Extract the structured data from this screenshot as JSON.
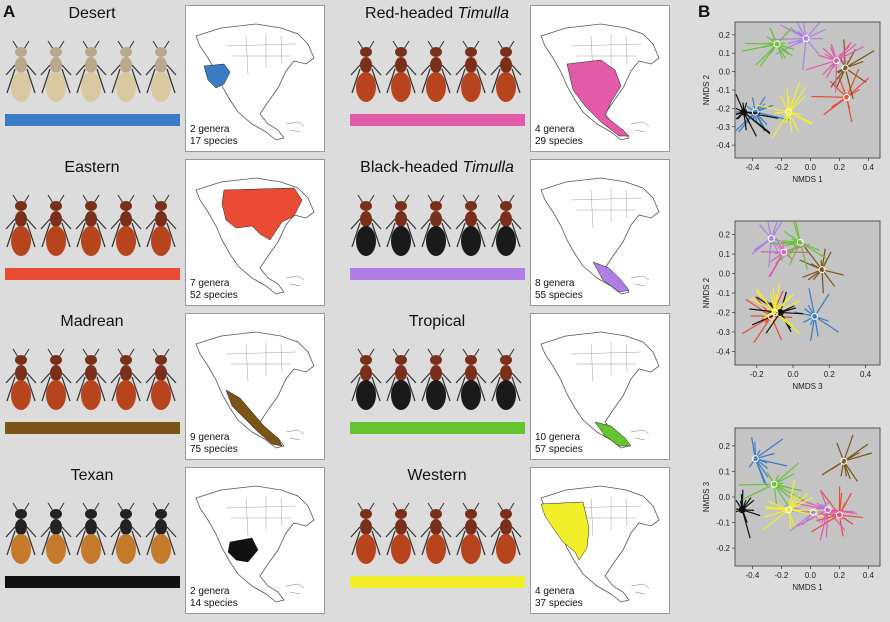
{
  "panels": {
    "a": "A",
    "b": "B"
  },
  "groups": [
    {
      "title": "Desert",
      "title_italic": "",
      "color": "#3b7cc4",
      "genera": "2 genera",
      "species": "17 species"
    },
    {
      "title": "Eastern",
      "title_italic": "",
      "color": "#ea4b35",
      "genera": "7 genera",
      "species": "52 species"
    },
    {
      "title": "Madrean",
      "title_italic": "",
      "color": "#7a5516",
      "genera": "9 genera",
      "species": "75 species"
    },
    {
      "title": "Texan",
      "title_italic": "",
      "color": "#111111",
      "genera": "2 genera",
      "species": "14 species"
    },
    {
      "title": "Red-headed ",
      "title_italic": "Timulla",
      "color": "#e35aa8",
      "genera": "4 genera",
      "species": "29 species"
    },
    {
      "title": "Black-headed ",
      "title_italic": "Timulla",
      "color": "#b07ee6",
      "genera": "8 genera",
      "species": "55 species"
    },
    {
      "title": "Tropical",
      "title_italic": "",
      "color": "#66c431",
      "genera": "10 genera",
      "species": "57 species"
    },
    {
      "title": "Western",
      "title_italic": "",
      "color": "#f3ee2a",
      "genera": "4 genera",
      "species": "37 species"
    }
  ],
  "chart_data": [
    {
      "type": "scatter",
      "xlabel": "NMDS 1",
      "ylabel": "NMDS 2",
      "xticks": [
        "-0.4",
        "-0.2",
        "0.0",
        "0.2",
        "0.4"
      ],
      "yticks": [
        "0.2",
        "0.1",
        "0.0",
        "-0.1",
        "-0.2",
        "-0.3",
        "-0.4"
      ],
      "xlim": [
        -0.52,
        0.48
      ],
      "ylim": [
        -0.47,
        0.27
      ],
      "series": [
        {
          "color": "#3b7cc4",
          "centroid": [
            -0.38,
            -0.22
          ]
        },
        {
          "color": "#ea4b35",
          "centroid": [
            0.25,
            -0.14
          ]
        },
        {
          "color": "#7a5516",
          "centroid": [
            0.24,
            0.02
          ]
        },
        {
          "color": "#111111",
          "centroid": [
            -0.46,
            -0.22
          ]
        },
        {
          "color": "#e35aa8",
          "centroid": [
            0.18,
            0.06
          ]
        },
        {
          "color": "#b07ee6",
          "centroid": [
            -0.03,
            0.18
          ]
        },
        {
          "color": "#66c431",
          "centroid": [
            -0.23,
            0.15
          ]
        },
        {
          "color": "#f3ee2a",
          "centroid": [
            -0.15,
            -0.22
          ]
        }
      ]
    },
    {
      "type": "scatter",
      "xlabel": "NMDS 3",
      "ylabel": "NMDS 2",
      "xticks": [
        "-0.2",
        "0.0",
        "0.2",
        "0.4"
      ],
      "yticks": [
        "0.2",
        "0.1",
        "0.0",
        "-0.1",
        "-0.2",
        "-0.3",
        "-0.4"
      ],
      "xlim": [
        -0.32,
        0.48
      ],
      "ylim": [
        -0.47,
        0.27
      ],
      "series": [
        {
          "color": "#3b7cc4",
          "centroid": [
            0.12,
            -0.22
          ]
        },
        {
          "color": "#ea4b35",
          "centroid": [
            -0.12,
            -0.22
          ]
        },
        {
          "color": "#7a5516",
          "centroid": [
            0.16,
            0.02
          ]
        },
        {
          "color": "#111111",
          "centroid": [
            -0.07,
            -0.2
          ]
        },
        {
          "color": "#e35aa8",
          "centroid": [
            -0.05,
            0.11
          ]
        },
        {
          "color": "#b07ee6",
          "centroid": [
            -0.12,
            0.18
          ]
        },
        {
          "color": "#66c431",
          "centroid": [
            0.04,
            0.16
          ]
        },
        {
          "color": "#f3ee2a",
          "centroid": [
            -0.1,
            -0.2
          ]
        }
      ]
    },
    {
      "type": "scatter",
      "xlabel": "NMDS 1",
      "ylabel": "NMDS 3",
      "xticks": [
        "-0.4",
        "-0.2",
        "0.0",
        "0.2",
        "0.4"
      ],
      "yticks": [
        "0.2",
        "0.1",
        "0.0",
        "-0.1",
        "-0.2"
      ],
      "xlim": [
        -0.52,
        0.48
      ],
      "ylim": [
        -0.27,
        0.27
      ],
      "series": [
        {
          "color": "#3b7cc4",
          "centroid": [
            -0.38,
            0.15
          ]
        },
        {
          "color": "#ea4b35",
          "centroid": [
            0.2,
            -0.07
          ]
        },
        {
          "color": "#7a5516",
          "centroid": [
            0.23,
            0.14
          ]
        },
        {
          "color": "#111111",
          "centroid": [
            -0.47,
            -0.05
          ]
        },
        {
          "color": "#e35aa8",
          "centroid": [
            0.12,
            -0.05
          ]
        },
        {
          "color": "#b07ee6",
          "centroid": [
            0.02,
            -0.06
          ]
        },
        {
          "color": "#66c431",
          "centroid": [
            -0.25,
            0.05
          ]
        },
        {
          "color": "#f3ee2a",
          "centroid": [
            -0.15,
            -0.05
          ]
        }
      ]
    }
  ]
}
